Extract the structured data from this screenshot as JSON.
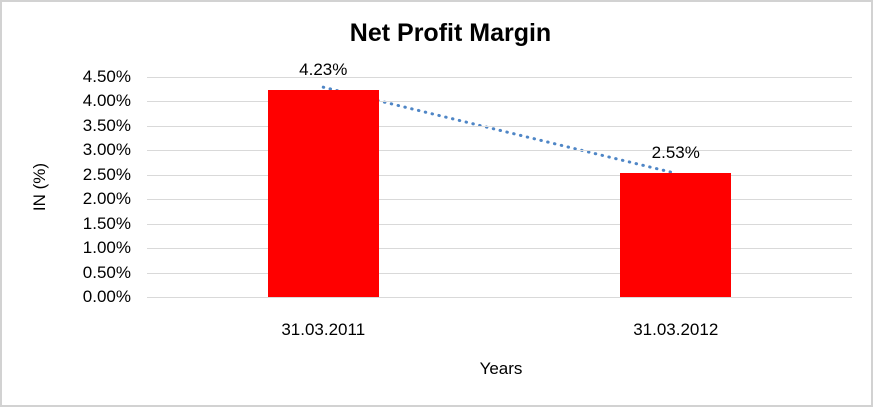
{
  "frame": {
    "background": "#ffffff",
    "border_color": "#d2d2d2"
  },
  "chart_data": {
    "type": "bar",
    "title": "Net Profit Margin",
    "xlabel": "Years",
    "ylabel": "IN (%)",
    "categories": [
      "31.03.2011",
      "31.03.2012"
    ],
    "values": [
      4.23,
      2.53
    ],
    "data_labels": [
      "4.23%",
      "2.53%"
    ],
    "y_ticks": [
      "4.50%",
      "4.00%",
      "3.50%",
      "3.00%",
      "2.50%",
      "2.00%",
      "1.50%",
      "1.00%",
      "0.50%",
      "0.00%"
    ],
    "ylim": [
      0,
      4.5
    ],
    "grid": true,
    "legend": "none",
    "bar_color": "#ff0000",
    "gridline_color": "#d9d9d9",
    "text_color": "#000000",
    "trendline": {
      "style": "dotted",
      "color": "#4f86c6",
      "points": [
        4.23,
        2.53
      ]
    }
  }
}
